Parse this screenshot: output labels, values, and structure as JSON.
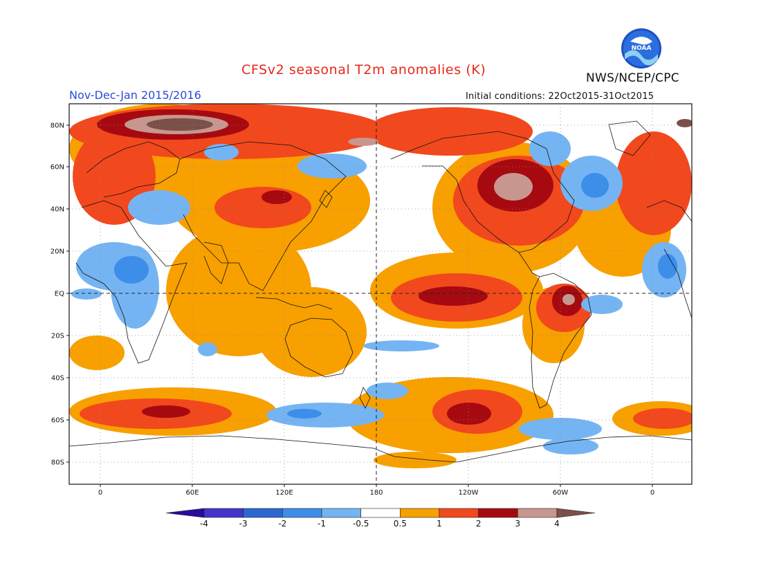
{
  "title": "CFSv2 seasonal T2m anomalies (K)",
  "period": "Nov-Dec-Jan 2015/2016",
  "initial_conditions": "Initial conditions: 22Oct2015-31Oct2015",
  "organization": "NWS/NCEP/CPC",
  "logo_text": "NOAA",
  "map": {
    "lat_labels": [
      "80N",
      "60N",
      "40N",
      "20N",
      "EQ",
      "20S",
      "40S",
      "60S",
      "80S"
    ],
    "lon_labels": [
      "0",
      "60E",
      "120E",
      "180",
      "120W",
      "60W",
      "0"
    ]
  },
  "colorbar": {
    "tick_labels": [
      "-4",
      "-3",
      "-2",
      "-1",
      "-0.5",
      "0.5",
      "1",
      "2",
      "3",
      "4"
    ],
    "colors": [
      "#2a0a9c",
      "#4334cc",
      "#2a68cf",
      "#3d8ee8",
      "#75b4f2",
      "#ffffff",
      "#f7a000",
      "#f2481d",
      "#a60a10",
      "#c7978f",
      "#7a5048"
    ]
  },
  "palette": {
    "warm_1": "#f7a000",
    "warm_2": "#f2481d",
    "warm_3": "#a60a10",
    "warm_4": "#c7978f",
    "warm_5": "#7a5048",
    "cold_1": "#75b4f2",
    "cold_2": "#3d8ee8"
  }
}
